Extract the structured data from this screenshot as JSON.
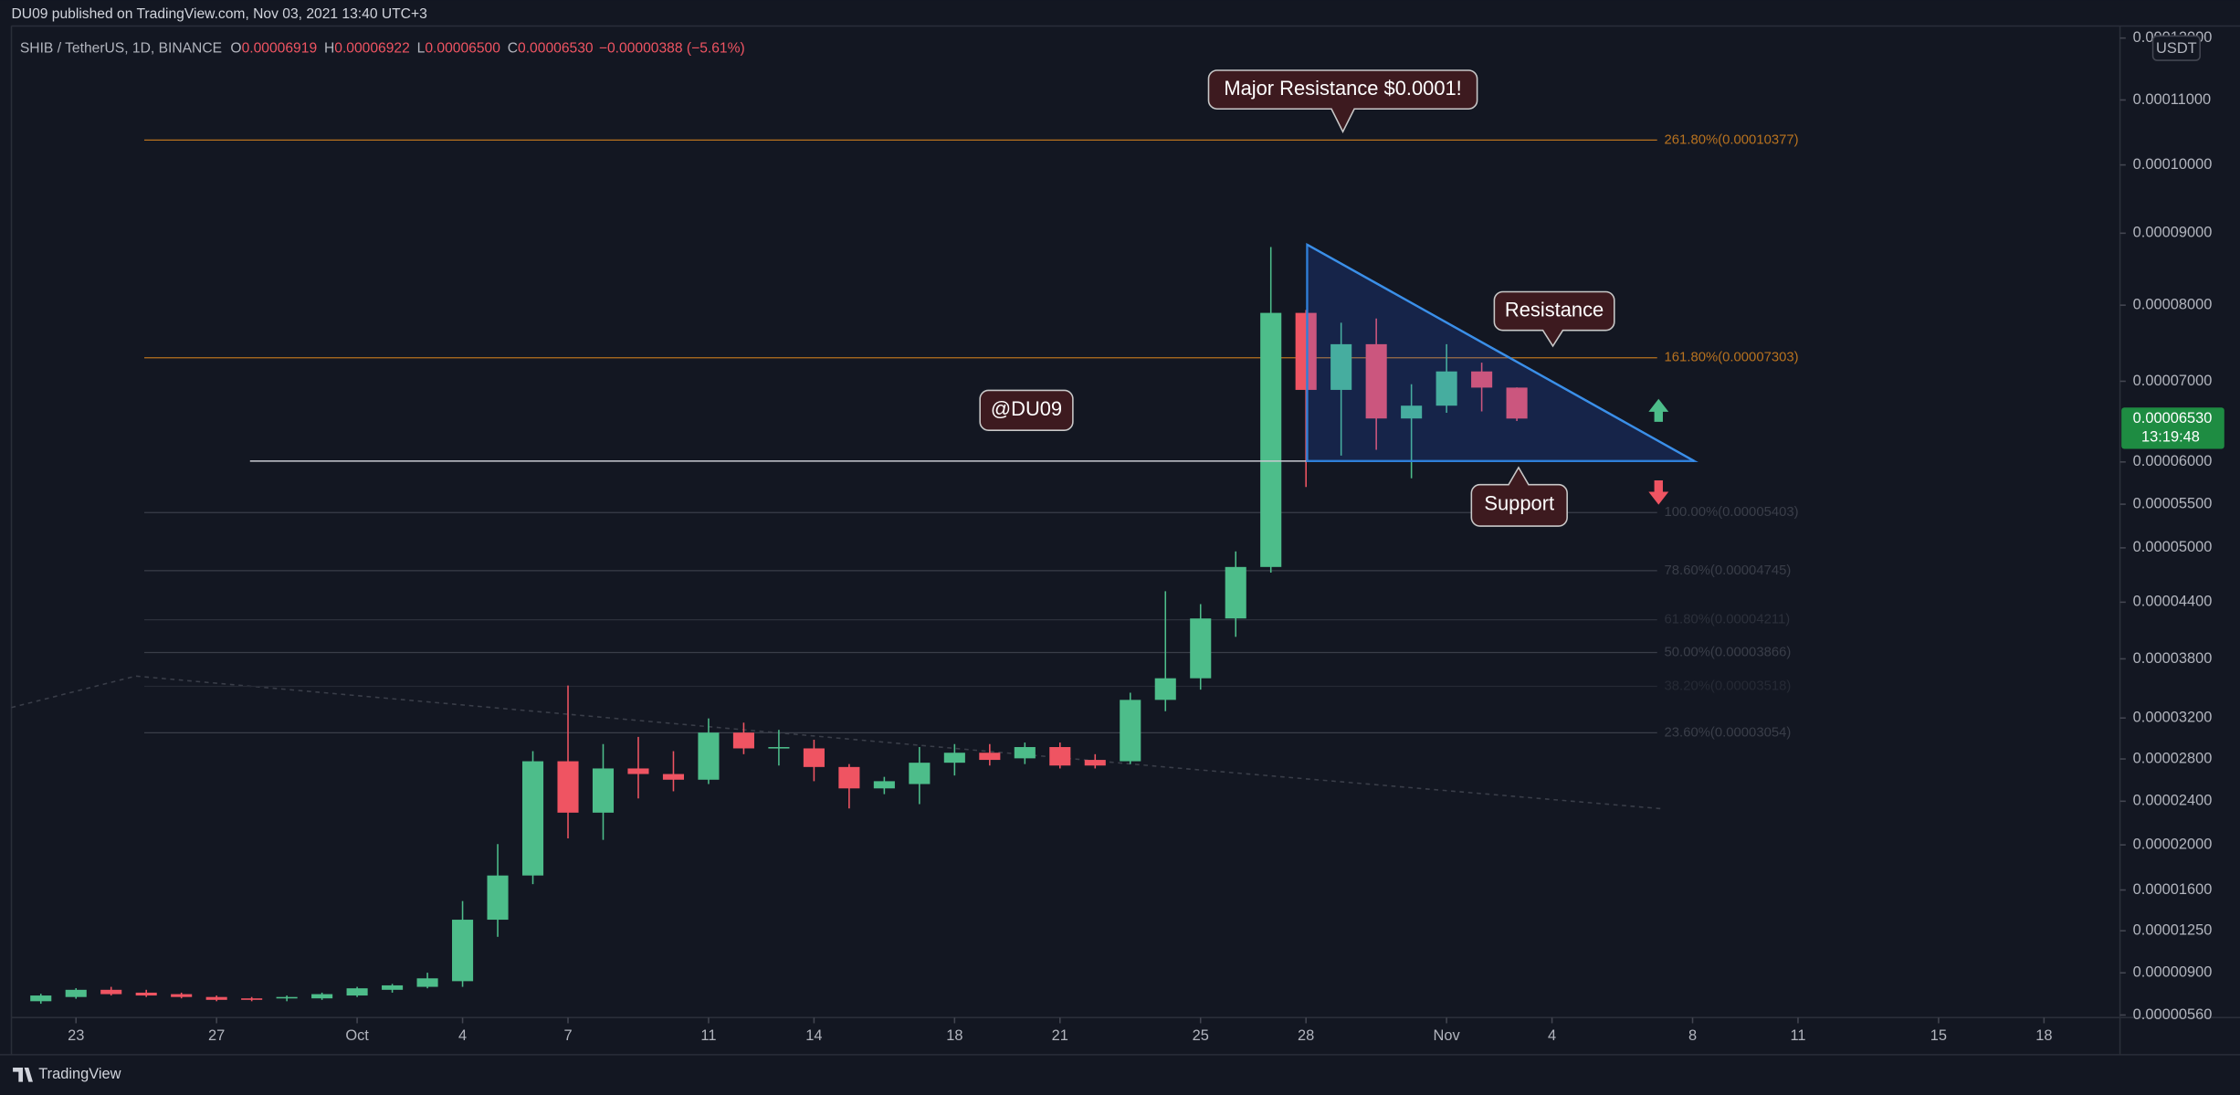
{
  "chart_data": {
    "type": "candlestick",
    "header": {
      "publisher": "DU09 published on TradingView.com, Nov 03, 2021 13:40 UTC+3",
      "symbol": "SHIB / TetherUS, 1D, BINANCE",
      "ohlc": [
        {
          "label": "O",
          "value": "0.00006919"
        },
        {
          "label": "H",
          "value": "0.00006922"
        },
        {
          "label": "L",
          "value": "0.00006500"
        },
        {
          "label": "C",
          "value": "0.00006530"
        }
      ],
      "change": "−0.00000388 (−5.61%)"
    },
    "currency": "USDT",
    "last_price": {
      "price": "0.00006530",
      "countdown": "13:19:48"
    },
    "brand": "TradingView",
    "annotations": [
      "Major Resistance $0.0001!",
      "Resistance",
      "Support",
      "@DU09"
    ],
    "up_color": "#4dbd8a",
    "down_color": "#ef5462",
    "x": [
      "Sep 22",
      "Sep 23",
      "Sep 24",
      "Sep 25",
      "Sep 26",
      "Sep 27",
      "Sep 28",
      "Sep 29",
      "Sep 30",
      "Oct 1",
      "Oct 2",
      "Oct 3",
      "Oct 4",
      "Oct 5",
      "Oct 6",
      "Oct 7",
      "Oct 8",
      "Oct 9",
      "Oct 10",
      "Oct 11",
      "Oct 12",
      "Oct 13",
      "Oct 14",
      "Oct 15",
      "Oct 16",
      "Oct 17",
      "Oct 18",
      "Oct 19",
      "Oct 20",
      "Oct 21",
      "Oct 22",
      "Oct 23",
      "Oct 24",
      "Oct 25",
      "Oct 26",
      "Oct 27",
      "Oct 28",
      "Oct 29",
      "Oct 30",
      "Oct 31",
      "Nov 1",
      "Nov 2",
      "Nov 3"
    ],
    "open": [
      6.7e-06,
      7.04e-06,
      7.62e-06,
      7.39e-06,
      7.27e-06,
      7.04e-06,
      6.93e-06,
      6.93e-06,
      6.93e-06,
      7.16e-06,
      7.62e-06,
      7.86e-06,
      8.32e-06,
      1.344e-05,
      1.727e-05,
      2.778e-05,
      2.294e-05,
      2.709e-05,
      2.656e-05,
      2.602e-05,
      3.056e-05,
      2.902e-05,
      2.902e-05,
      2.723e-05,
      2.52e-05,
      2.561e-05,
      2.764e-05,
      2.86e-05,
      2.806e-05,
      2.915e-05,
      2.791e-05,
      2.778e-05,
      3.381e-05,
      3.6e-05,
      4.225e-05,
      4.786e-05,
      7.896e-05,
      6.89e-05,
      7.48e-05,
      6.531e-05,
      6.691e-05,
      7.126e-05,
      6.919e-05
    ],
    "high": [
      7.3e-06,
      7.75e-06,
      7.86e-06,
      7.62e-06,
      7.39e-06,
      7.16e-06,
      7.04e-06,
      7.16e-06,
      7.39e-06,
      7.86e-06,
      8.1e-06,
      9.01e-06,
      1.504e-05,
      2.007e-05,
      2.875e-05,
      3.526e-05,
      2.944e-05,
      3.014e-05,
      2.875e-05,
      3.196e-05,
      3.154e-05,
      3.083e-05,
      2.986e-05,
      2.751e-05,
      2.629e-05,
      2.915e-05,
      2.944e-05,
      2.944e-05,
      2.959e-05,
      2.959e-05,
      2.846e-05,
      3.453e-05,
      4.519e-05,
      4.379e-05,
      4.96e-05,
      8.803e-05,
      7.936e-05,
      7.764e-05,
      7.821e-05,
      6.962e-05,
      7.48e-05,
      7.239e-05,
      6.922e-05
    ],
    "low": [
      6.5e-06,
      6.9e-06,
      7.16e-06,
      7.04e-06,
      6.93e-06,
      6.7e-06,
      6.7e-06,
      6.7e-06,
      6.81e-06,
      7.04e-06,
      7.39e-06,
      7.74e-06,
      7.86e-06,
      1.199e-05,
      1.651e-05,
      2.059e-05,
      2.045e-05,
      2.426e-05,
      2.493e-05,
      2.561e-05,
      2.846e-05,
      2.737e-05,
      2.588e-05,
      2.333e-05,
      2.466e-05,
      2.373e-05,
      2.642e-05,
      2.737e-05,
      2.751e-05,
      2.709e-05,
      2.709e-05,
      2.751e-05,
      3.268e-05,
      3.484e-05,
      4.03e-05,
      4.723e-05,
      5.702e-05,
      6.077e-05,
      6.147e-05,
      5.805e-05,
      6.602e-05,
      6.619e-05,
      6.5e-05
    ],
    "close": [
      7.16e-06,
      7.62e-06,
      7.27e-06,
      7.16e-06,
      7.04e-06,
      6.81e-06,
      6.81e-06,
      7.04e-06,
      7.27e-06,
      7.74e-06,
      7.98e-06,
      8.55e-06,
      1.344e-05,
      1.727e-05,
      2.778e-05,
      2.294e-05,
      2.709e-05,
      2.656e-05,
      2.602e-05,
      3.056e-05,
      2.902e-05,
      2.915e-05,
      2.723e-05,
      2.52e-05,
      2.588e-05,
      2.764e-05,
      2.86e-05,
      2.791e-05,
      2.915e-05,
      2.737e-05,
      2.737e-05,
      3.381e-05,
      3.6e-05,
      4.225e-05,
      4.786e-05,
      7.896e-05,
      6.89e-05,
      7.48e-05,
      6.531e-05,
      6.691e-05,
      7.126e-05,
      6.919e-05,
      6.53e-05
    ],
    "xlim": [
      "Sep 21",
      "Nov 20"
    ],
    "xticks": [
      {
        "value": "Sep 23",
        "label": "23"
      },
      {
        "value": "Sep 27",
        "label": "27"
      },
      {
        "value": "Oct 1",
        "label": "Oct"
      },
      {
        "value": "Oct 4",
        "label": "4"
      },
      {
        "value": "Oct 7",
        "label": "7"
      },
      {
        "value": "Oct 11",
        "label": "11"
      },
      {
        "value": "Oct 14",
        "label": "14"
      },
      {
        "value": "Oct 18",
        "label": "18"
      },
      {
        "value": "Oct 21",
        "label": "21"
      },
      {
        "value": "Oct 25",
        "label": "25"
      },
      {
        "value": "Oct 28",
        "label": "28"
      },
      {
        "value": "Nov 1",
        "label": "Nov"
      },
      {
        "value": "Nov 4",
        "label": "4"
      },
      {
        "value": "Nov 8",
        "label": "8"
      },
      {
        "value": "Nov 11",
        "label": "11"
      },
      {
        "value": "Nov 15",
        "label": "15"
      },
      {
        "value": "Nov 18",
        "label": "18"
      }
    ],
    "ylim": [
      5.4e-06,
      0.000122
    ],
    "yticks": [
      {
        "value": 0.00012,
        "label": "0.00012000"
      },
      {
        "value": 0.00011,
        "label": "0.00011000"
      },
      {
        "value": 0.0001,
        "label": "0.00010000"
      },
      {
        "value": 9e-05,
        "label": "0.00009000"
      },
      {
        "value": 8e-05,
        "label": "0.00008000"
      },
      {
        "value": 7e-05,
        "label": "0.00007000"
      },
      {
        "value": 6e-05,
        "label": "0.00006000"
      },
      {
        "value": 5.5e-05,
        "label": "0.00005500"
      },
      {
        "value": 5e-05,
        "label": "0.00005000"
      },
      {
        "value": 4.4e-05,
        "label": "0.00004400"
      },
      {
        "value": 3.8e-05,
        "label": "0.00003800"
      },
      {
        "value": 3.2e-05,
        "label": "0.00003200"
      },
      {
        "value": 2.8e-05,
        "label": "0.00002800"
      },
      {
        "value": 2.4e-05,
        "label": "0.00002400"
      },
      {
        "value": 2e-05,
        "label": "0.00002000"
      },
      {
        "value": 1.6e-05,
        "label": "0.00001600"
      },
      {
        "value": 1.25e-05,
        "label": "0.00001250"
      },
      {
        "value": 9e-06,
        "label": "0.00000900"
      },
      {
        "value": 5.6e-06,
        "label": "0.00000560"
      }
    ],
    "grid": false,
    "fib_levels": [
      {
        "label": "261.80%(0.00010377)",
        "value": 0.00010377,
        "color": "#b8721f"
      },
      {
        "label": "161.80%(0.00007303)",
        "value": 7.303e-05,
        "color": "#b8721f"
      },
      {
        "label": "100.00%(0.00005403)",
        "value": 5.403e-05,
        "color": "#3a3e49"
      },
      {
        "label": "78.60%(0.00004745)",
        "value": 4.745e-05,
        "color": "#3a3e49"
      },
      {
        "label": "61.80%(0.00004211)",
        "value": 4.211e-05,
        "color": "#2c303b"
      },
      {
        "label": "50.00%(0.00003866)",
        "value": 3.866e-05,
        "color": "#3a3e49"
      },
      {
        "label": "38.20%(0.00003518)",
        "value": 3.518e-05,
        "color": "#262a35"
      },
      {
        "label": "23.60%(0.00003054)",
        "value": 3.054e-05,
        "color": "#3a3e49"
      }
    ]
  }
}
